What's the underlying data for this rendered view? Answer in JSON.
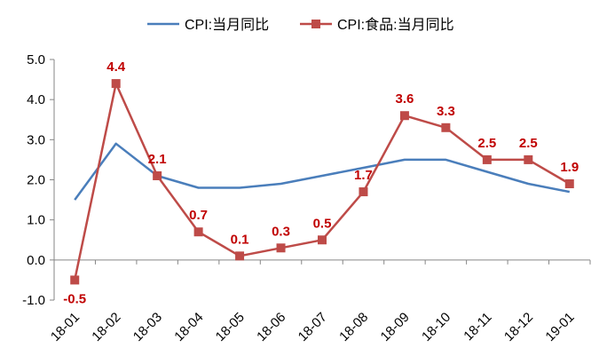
{
  "chart_data": {
    "type": "line",
    "categories": [
      "18-01",
      "18-02",
      "18-03",
      "18-04",
      "18-05",
      "18-06",
      "18-07",
      "18-08",
      "18-09",
      "18-10",
      "18-11",
      "18-12",
      "19-01"
    ],
    "series": [
      {
        "name": "CPI:当月同比",
        "color": "#4a7ebb",
        "marker": "none",
        "values": [
          1.5,
          2.9,
          2.1,
          1.8,
          1.8,
          1.9,
          2.1,
          2.3,
          2.5,
          2.5,
          2.2,
          1.9,
          1.7
        ]
      },
      {
        "name": "CPI:食品:当月同比",
        "color": "#be4b48",
        "marker": "square",
        "values": [
          -0.5,
          4.4,
          2.1,
          0.7,
          0.1,
          0.3,
          0.5,
          1.7,
          3.6,
          3.3,
          2.5,
          2.5,
          1.9
        ],
        "data_labels": [
          "-0.5",
          "4.4",
          "2.1",
          "0.7",
          "0.1",
          "0.3",
          "0.5",
          "1.7",
          "3.6",
          "3.3",
          "2.5",
          "2.5",
          "1.9"
        ],
        "label_color": "#c00000"
      }
    ],
    "y_ticks": [
      "5.0",
      "4.0",
      "3.0",
      "2.0",
      "1.0",
      "0.0",
      "-1.0"
    ],
    "ylim": [
      -1.0,
      5.0
    ],
    "grid": false,
    "legend": "top-center",
    "title": "",
    "xlabel": "",
    "ylabel": ""
  }
}
